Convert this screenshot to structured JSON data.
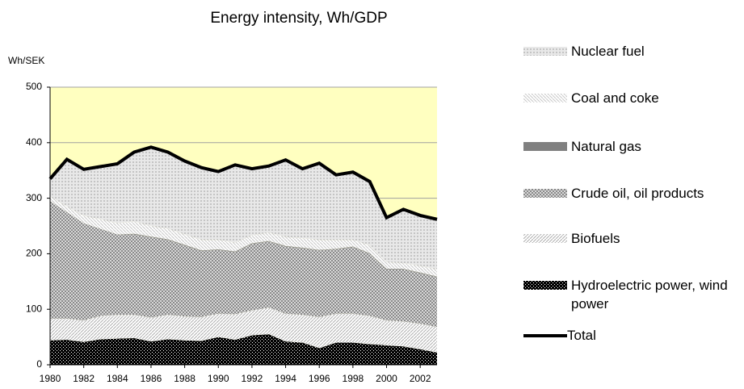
{
  "chart_data": {
    "type": "area",
    "title": "Energy intensity, Wh/GDP",
    "y_label": "Wh/SEK",
    "x": [
      1980,
      1981,
      1982,
      1983,
      1984,
      1985,
      1986,
      1987,
      1988,
      1989,
      1990,
      1991,
      1992,
      1993,
      1994,
      1995,
      1996,
      1997,
      1998,
      1999,
      2000,
      2001,
      2002,
      2003
    ],
    "xlim": [
      1980,
      2003
    ],
    "xticks": [
      1980,
      1982,
      1984,
      1986,
      1988,
      1990,
      1992,
      1994,
      1996,
      1998,
      2000,
      2002
    ],
    "ylim": [
      0,
      500
    ],
    "yticks": [
      0,
      100,
      200,
      300,
      400,
      500
    ],
    "grid": true,
    "background": "#ffffc0",
    "series": [
      {
        "name": "Hydroelectric power, wind power",
        "color": "#000000",
        "pattern": "checker",
        "values": [
          44,
          45,
          41,
          46,
          47,
          48,
          42,
          46,
          44,
          43,
          50,
          45,
          53,
          55,
          42,
          40,
          30,
          40,
          40,
          37,
          35,
          33,
          28,
          22
        ]
      },
      {
        "name": "Biofuels",
        "color": "#b0b0b0",
        "pattern": "diagonal",
        "values": [
          39,
          38,
          39,
          42,
          43,
          42,
          43,
          44,
          43,
          43,
          42,
          46,
          45,
          48,
          50,
          50,
          56,
          52,
          52,
          51,
          45,
          45,
          46,
          46
        ]
      },
      {
        "name": "Crude oil, oil products",
        "color": "#8a8a8a",
        "pattern": "crosshatch",
        "values": [
          212,
          192,
          175,
          157,
          145,
          145,
          145,
          135,
          128,
          119,
          115,
          112,
          120,
          119,
          121,
          120,
          120,
          116,
          120,
          112,
          92,
          94,
          91,
          90
        ]
      },
      {
        "name": "Natural gas",
        "color": "#808080",
        "pattern": "solid",
        "values": [
          0,
          0,
          0,
          0,
          0,
          1,
          1,
          1,
          1,
          1,
          1,
          1,
          1,
          1,
          1,
          1,
          1,
          1,
          1,
          1,
          1,
          1,
          1,
          1
        ]
      },
      {
        "name": "Coal and coke",
        "color": "#c8c8c8",
        "pattern": "backdiagonal",
        "values": [
          8,
          10,
          13,
          17,
          20,
          22,
          19,
          19,
          19,
          19,
          17,
          16,
          14,
          15,
          16,
          17,
          18,
          16,
          12,
          14,
          12,
          10,
          12,
          13
        ]
      },
      {
        "name": "Nuclear fuel",
        "color": "#c4c4c4",
        "pattern": "dots",
        "values": [
          32,
          85,
          84,
          95,
          107,
          125,
          142,
          138,
          132,
          130,
          123,
          140,
          120,
          120,
          139,
          125,
          138,
          117,
          122,
          115,
          80,
          97,
          91,
          90
        ]
      },
      {
        "name": "Total",
        "color": "#000000",
        "type": "line",
        "values": [
          335,
          370,
          352,
          357,
          362,
          383,
          392,
          383,
          367,
          355,
          348,
          360,
          353,
          358,
          369,
          353,
          363,
          342,
          347,
          330,
          265,
          280,
          269,
          262
        ]
      }
    ]
  }
}
